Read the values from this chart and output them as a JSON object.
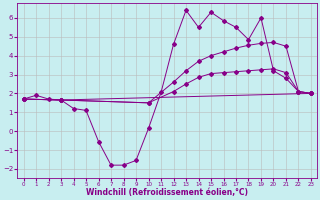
{
  "xlabel": "Windchill (Refroidissement éolien,°C)",
  "bg_color": "#c8eef0",
  "line_color": "#880088",
  "grid_color": "#bbbbbb",
  "xlim": [
    -0.5,
    23.5
  ],
  "ylim": [
    -2.5,
    6.8
  ],
  "xticks": [
    0,
    1,
    2,
    3,
    4,
    5,
    6,
    7,
    8,
    9,
    10,
    11,
    12,
    13,
    14,
    15,
    16,
    17,
    18,
    19,
    20,
    21,
    22,
    23
  ],
  "yticks": [
    -2,
    -1,
    0,
    1,
    2,
    3,
    4,
    5,
    6
  ],
  "series": [
    {
      "x": [
        0,
        1,
        2,
        3,
        4,
        5,
        6,
        7,
        8,
        9,
        10,
        11,
        12,
        13,
        14,
        15,
        16,
        17,
        18,
        19,
        20,
        21,
        22,
        23
      ],
      "y": [
        1.7,
        1.9,
        1.7,
        1.65,
        1.2,
        1.1,
        -0.55,
        -1.8,
        -1.8,
        -1.55,
        0.15,
        2.05,
        4.6,
        6.4,
        5.5,
        6.3,
        5.85,
        5.5,
        4.85,
        6.0,
        3.2,
        2.8,
        2.1,
        2.0
      ]
    },
    {
      "x": [
        0,
        3,
        10,
        12,
        13,
        14,
        15,
        16,
        17,
        18,
        19,
        20,
        21,
        22,
        23
      ],
      "y": [
        1.7,
        1.65,
        1.5,
        2.6,
        3.2,
        3.7,
        4.0,
        4.2,
        4.4,
        4.55,
        4.65,
        4.7,
        4.5,
        2.1,
        2.0
      ]
    },
    {
      "x": [
        0,
        3,
        10,
        12,
        13,
        14,
        15,
        16,
        17,
        18,
        19,
        20,
        21,
        22,
        23
      ],
      "y": [
        1.7,
        1.65,
        1.5,
        2.1,
        2.5,
        2.85,
        3.05,
        3.1,
        3.15,
        3.2,
        3.25,
        3.3,
        3.1,
        2.1,
        2.0
      ]
    },
    {
      "x": [
        0,
        3,
        23
      ],
      "y": [
        1.7,
        1.65,
        2.0
      ]
    }
  ]
}
